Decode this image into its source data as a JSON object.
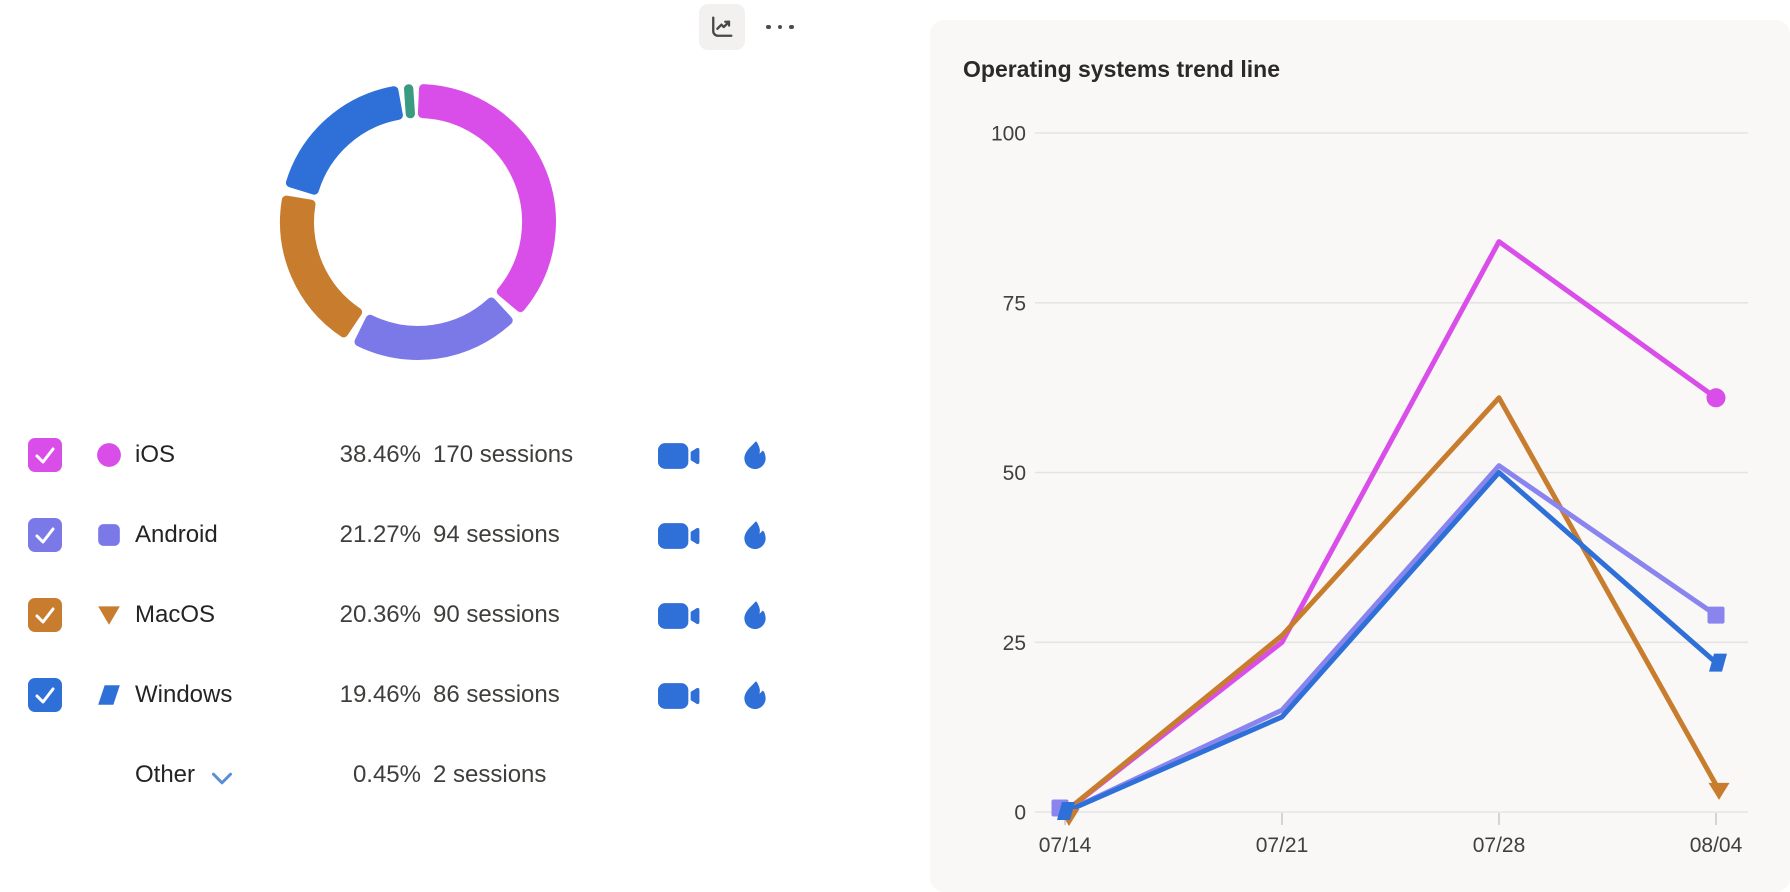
{
  "toolbar": {
    "trend_button_icon": "line-chart-icon",
    "more_button_icon": "ellipsis-icon"
  },
  "legend": {
    "rows": [
      {
        "label": "iOS",
        "percent": "38.46%",
        "sessions": "170 sessions",
        "color": "#d94ee8",
        "marker": "circle",
        "checked": true,
        "actions": [
          "video",
          "flame"
        ]
      },
      {
        "label": "Android",
        "percent": "21.27%",
        "sessions": "94 sessions",
        "color": "#7b79e8",
        "marker": "square",
        "checked": true,
        "actions": [
          "video",
          "flame"
        ]
      },
      {
        "label": "MacOS",
        "percent": "20.36%",
        "sessions": "90 sessions",
        "color": "#c87d2e",
        "marker": "triangle-down",
        "checked": true,
        "actions": [
          "video",
          "flame"
        ]
      },
      {
        "label": "Windows",
        "percent": "19.46%",
        "sessions": "86 sessions",
        "color": "#2e70d8",
        "marker": "parallelogram",
        "checked": true,
        "actions": [
          "video",
          "flame"
        ]
      },
      {
        "label": "Other",
        "percent": "0.45%",
        "sessions": "2 sessions",
        "expandable": true
      }
    ]
  },
  "chart_data": [
    {
      "type": "pie",
      "donut": true,
      "title": "",
      "series": [
        {
          "name": "iOS",
          "value": 38.46,
          "sessions": 170,
          "color": "#d94ee8"
        },
        {
          "name": "Android",
          "value": 21.27,
          "sessions": 94,
          "color": "#7b79e8"
        },
        {
          "name": "MacOS",
          "value": 20.36,
          "sessions": 90,
          "color": "#c87d2e"
        },
        {
          "name": "Windows",
          "value": 19.46,
          "sessions": 86,
          "color": "#2e70d8"
        },
        {
          "name": "Other",
          "value": 0.45,
          "sessions": 2,
          "color": "#3a9b82"
        }
      ]
    },
    {
      "type": "line",
      "title": "Operating systems trend line",
      "x": [
        "07/14",
        "07/21",
        "07/28",
        "08/04"
      ],
      "series": [
        {
          "name": "iOS",
          "color": "#d94ee8",
          "marker": "circle",
          "values": [
            0,
            25,
            84,
            61
          ]
        },
        {
          "name": "MacOS",
          "color": "#c87d2e",
          "marker": "triangle-down",
          "values": [
            0,
            26,
            61,
            4
          ]
        },
        {
          "name": "Android",
          "color": "#8a85ee",
          "marker": "square",
          "values": [
            0,
            15,
            51,
            29
          ]
        },
        {
          "name": "Windows",
          "color": "#2e70d8",
          "marker": "parallelogram",
          "values": [
            0,
            14,
            50,
            22
          ]
        }
      ],
      "ylim": [
        0,
        100
      ],
      "yticks": [
        0,
        25,
        50,
        75,
        100
      ],
      "grid": "horizontal",
      "legend_position": "none"
    }
  ],
  "colors": {
    "panel_background": "#f9f8f7",
    "gridline": "#e6e4e2",
    "axis_label": "#40403e",
    "action_icon_blue": "#2e70d8",
    "chevron_blue": "#5a8fd6"
  }
}
